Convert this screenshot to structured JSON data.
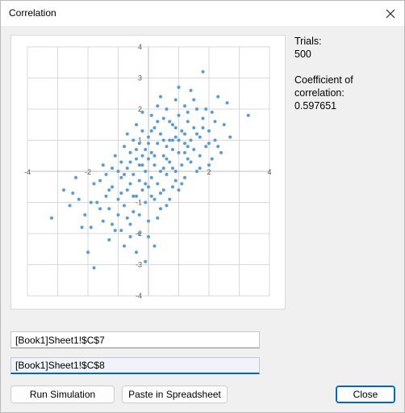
{
  "window": {
    "title": "Correlation"
  },
  "stats": {
    "trials_label": "Trials:",
    "trials_value": "500",
    "coef_label_1": "Coefficient of",
    "coef_label_2": "correlation:",
    "coef_value": "0.597651"
  },
  "inputs": {
    "range1": "[Book1]Sheet1!$C$7",
    "range2": "[Book1]Sheet1!$C$8"
  },
  "buttons": {
    "run": "Run Simulation",
    "paste": "Paste in Spreadsheet",
    "close": "Close"
  },
  "colors": {
    "point": "#5b9bd5",
    "accent": "#0067c0",
    "grid": "#d9d9d9"
  },
  "chart_data": {
    "type": "scatter",
    "title": "",
    "xlabel": "",
    "ylabel": "",
    "xlim": [
      -4,
      4
    ],
    "ylim": [
      -4,
      4
    ],
    "x_ticks": [
      "-4",
      "-2",
      "2",
      "4"
    ],
    "y_ticks": [
      "4",
      "3",
      "2",
      "1",
      "-1",
      "-2",
      "-3",
      "-4"
    ],
    "grid": true,
    "legend": "none",
    "series": [
      {
        "points": [
          [
            -3.2,
            -1.5
          ],
          [
            -2.8,
            -0.6
          ],
          [
            -2.6,
            -1.1
          ],
          [
            -2.4,
            -0.2
          ],
          [
            -2.3,
            -0.9
          ],
          [
            -2.1,
            -1.4
          ],
          [
            -2.0,
            -2.6
          ],
          [
            -1.9,
            -1.8
          ],
          [
            -1.8,
            -0.4
          ],
          [
            -1.8,
            -3.1
          ],
          [
            -1.7,
            -1.0
          ],
          [
            -1.6,
            -0.3
          ],
          [
            -1.5,
            -1.6
          ],
          [
            -1.5,
            0.2
          ],
          [
            -1.4,
            -0.8
          ],
          [
            -1.3,
            -2.2
          ],
          [
            -1.3,
            -1.2
          ],
          [
            -1.2,
            0.1
          ],
          [
            -1.2,
            -0.5
          ],
          [
            -1.1,
            -1.9
          ],
          [
            -1.1,
            0.5
          ],
          [
            -1.0,
            -0.9
          ],
          [
            -1.0,
            -1.4
          ],
          [
            -0.9,
            0.3
          ],
          [
            -0.9,
            -0.2
          ],
          [
            -0.8,
            -2.4
          ],
          [
            -0.8,
            0.8
          ],
          [
            -0.8,
            -1.1
          ],
          [
            -0.7,
            -0.6
          ],
          [
            -0.7,
            0.1
          ],
          [
            -0.7,
            1.2
          ],
          [
            -0.6,
            -1.7
          ],
          [
            -0.6,
            -0.4
          ],
          [
            -0.6,
            0.6
          ],
          [
            -0.5,
            -0.1
          ],
          [
            -0.5,
            1.0
          ],
          [
            -0.5,
            -1.3
          ],
          [
            -0.4,
            0.4
          ],
          [
            -0.4,
            -0.8
          ],
          [
            -0.4,
            1.5
          ],
          [
            -0.3,
            -0.3
          ],
          [
            -0.3,
            0.9
          ],
          [
            -0.3,
            -2.0
          ],
          [
            -0.2,
            0.2
          ],
          [
            -0.2,
            -0.6
          ],
          [
            -0.2,
            1.3
          ],
          [
            -0.1,
            0.7
          ],
          [
            -0.1,
            -1.0
          ],
          [
            -0.1,
            0.0
          ],
          [
            0.0,
            -0.5
          ],
          [
            0.0,
            1.1
          ],
          [
            0.0,
            -1.6
          ],
          [
            0.0,
            0.4
          ],
          [
            0.1,
            1.8
          ],
          [
            0.1,
            -0.2
          ],
          [
            0.1,
            0.6
          ],
          [
            0.2,
            -0.9
          ],
          [
            0.2,
            1.4
          ],
          [
            0.2,
            0.2
          ],
          [
            0.3,
            -0.4
          ],
          [
            0.3,
            0.9
          ],
          [
            0.3,
            2.1
          ],
          [
            0.4,
            0.0
          ],
          [
            0.4,
            -1.2
          ],
          [
            0.4,
            1.2
          ],
          [
            0.5,
            0.5
          ],
          [
            0.5,
            -0.6
          ],
          [
            0.5,
            1.7
          ],
          [
            0.6,
            0.8
          ],
          [
            0.6,
            -0.1
          ],
          [
            0.6,
            2.0
          ],
          [
            0.7,
            0.3
          ],
          [
            0.7,
            1.0
          ],
          [
            0.7,
            -0.9
          ],
          [
            0.8,
            1.5
          ],
          [
            0.8,
            0.1
          ],
          [
            0.8,
            0.7
          ],
          [
            0.9,
            2.3
          ],
          [
            0.9,
            -0.3
          ],
          [
            0.9,
            1.1
          ],
          [
            1.0,
            0.6
          ],
          [
            1.0,
            1.8
          ],
          [
            1.0,
            -0.6
          ],
          [
            1.1,
            0.2
          ],
          [
            1.1,
            1.3
          ],
          [
            1.2,
            0.9
          ],
          [
            1.2,
            2.1
          ],
          [
            1.2,
            -0.2
          ],
          [
            1.3,
            1.6
          ],
          [
            1.3,
            0.4
          ],
          [
            1.4,
            1.0
          ],
          [
            1.4,
            2.6
          ],
          [
            1.5,
            0.7
          ],
          [
            1.5,
            1.4
          ],
          [
            1.6,
            0.0
          ],
          [
            1.6,
            2.0
          ],
          [
            1.7,
            1.1
          ],
          [
            1.7,
            0.5
          ],
          [
            1.8,
            1.7
          ],
          [
            1.8,
            3.2
          ],
          [
            1.9,
            0.8
          ],
          [
            2.0,
            1.3
          ],
          [
            2.0,
            0.2
          ],
          [
            2.1,
            1.9
          ],
          [
            2.2,
            1.0
          ],
          [
            2.3,
            2.4
          ],
          [
            2.4,
            0.6
          ],
          [
            2.5,
            1.5
          ],
          [
            2.6,
            2.2
          ],
          [
            2.7,
            1.1
          ],
          [
            3.3,
            1.8
          ],
          [
            -2.5,
            -0.7
          ],
          [
            -2.2,
            -1.8
          ],
          [
            -1.9,
            -1.0
          ],
          [
            -1.6,
            -1.2
          ],
          [
            -1.4,
            -0.1
          ],
          [
            -1.2,
            -1.7
          ],
          [
            -1.0,
            0.0
          ],
          [
            -0.9,
            -0.7
          ],
          [
            -0.7,
            -1.5
          ],
          [
            -0.6,
            0.3
          ],
          [
            -0.5,
            -0.8
          ],
          [
            -0.4,
            0.7
          ],
          [
            -0.3,
            -1.4
          ],
          [
            -0.2,
            0.5
          ],
          [
            -0.1,
            -0.4
          ],
          [
            0.0,
            0.9
          ],
          [
            0.1,
            -0.8
          ],
          [
            0.2,
            0.5
          ],
          [
            0.3,
            1.6
          ],
          [
            0.4,
            -0.7
          ],
          [
            0.5,
            1.0
          ],
          [
            0.6,
            0.4
          ],
          [
            0.7,
            1.6
          ],
          [
            0.8,
            -0.5
          ],
          [
            0.9,
            1.4
          ],
          [
            1.0,
            1.0
          ],
          [
            1.1,
            -0.4
          ],
          [
            1.2,
            0.6
          ],
          [
            1.3,
            1.9
          ],
          [
            1.4,
            0.3
          ],
          [
            1.5,
            2.3
          ],
          [
            1.6,
            1.2
          ],
          [
            1.7,
            0.1
          ],
          [
            1.8,
            1.4
          ],
          [
            1.9,
            2.0
          ],
          [
            2.0,
            0.9
          ],
          [
            2.1,
            0.4
          ],
          [
            2.2,
            1.6
          ],
          [
            2.3,
            0.8
          ],
          [
            -0.1,
            -2.9
          ],
          [
            0.0,
            -2.1
          ],
          [
            -0.4,
            -2.6
          ],
          [
            0.3,
            -1.5
          ],
          [
            -0.9,
            -1.9
          ],
          [
            0.6,
            -1.1
          ],
          [
            -1.3,
            -0.6
          ],
          [
            0.9,
            0.0
          ],
          [
            -0.2,
            1.9
          ],
          [
            0.4,
            2.4
          ],
          [
            1.0,
            2.7
          ],
          [
            0.2,
            -2.4
          ],
          [
            -0.6,
            -2.1
          ],
          [
            1.2,
            1.2
          ],
          [
            -0.8,
            -0.1
          ],
          [
            0.1,
            1.3
          ],
          [
            0.5,
            0.1
          ],
          [
            -0.3,
            0.2
          ],
          [
            0.8,
            1.0
          ],
          [
            1.3,
            0.8
          ]
        ]
      }
    ]
  }
}
